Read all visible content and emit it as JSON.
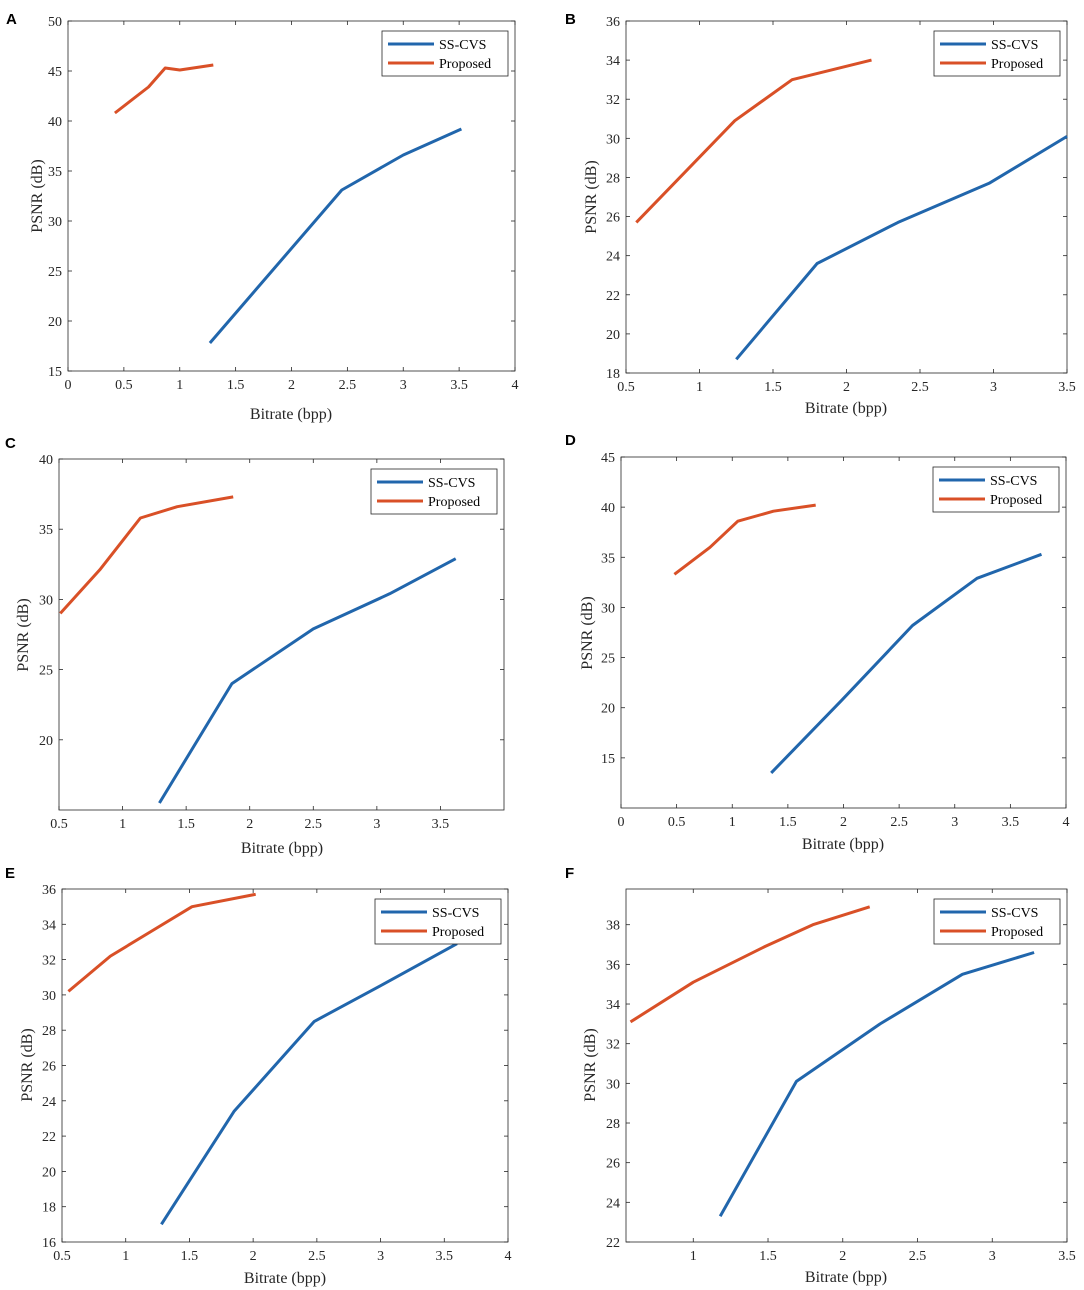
{
  "figure": {
    "x_label": "Bitrate (bpp)",
    "y_label": "PSNR (dB)"
  },
  "colors": {
    "ss_cvs": "#2166ac",
    "proposed": "#d95027"
  },
  "chart_data": [
    {
      "type": "line",
      "panel": "A",
      "xlabel": "Bitrate (bpp)",
      "ylabel": "PSNR (dB)",
      "xlim": [
        0,
        4
      ],
      "ylim": [
        15,
        50
      ],
      "xticks": [
        0,
        0.5,
        1,
        1.5,
        2,
        2.5,
        3,
        3.5,
        4
      ],
      "xtick_labels": [
        "0",
        "0.5",
        "1",
        "1.5",
        "2",
        "2.5",
        "3",
        "3.5",
        "4"
      ],
      "yticks": [
        15,
        20,
        25,
        30,
        35,
        40,
        45,
        50
      ],
      "ytick_labels": [
        "15",
        "20",
        "25",
        "30",
        "35",
        "40",
        "45",
        "50"
      ],
      "legend_position": "top-right",
      "series": [
        {
          "name": "SS-CVS",
          "x": [
            1.27,
            2.45,
            3.0,
            3.52
          ],
          "y": [
            17.8,
            33.1,
            36.6,
            39.2
          ]
        },
        {
          "name": "Proposed",
          "x": [
            0.42,
            0.72,
            0.87,
            1.0,
            1.3
          ],
          "y": [
            40.8,
            43.4,
            45.3,
            45.1,
            45.6
          ]
        }
      ]
    },
    {
      "type": "line",
      "panel": "B",
      "xlabel": "Bitrate (bpp)",
      "ylabel": "PSNR (dB)",
      "xlim": [
        0.5,
        3.5
      ],
      "ylim": [
        18,
        36
      ],
      "xticks": [
        0.5,
        1,
        1.5,
        2,
        2.5,
        3,
        3.5
      ],
      "xtick_labels": [
        "0.5",
        "1",
        "1.5",
        "2",
        "2.5",
        "3",
        "3.5"
      ],
      "yticks": [
        18,
        20,
        22,
        24,
        26,
        28,
        30,
        32,
        34,
        36
      ],
      "ytick_labels": [
        "18",
        "20",
        "22",
        "24",
        "26",
        "28",
        "30",
        "32",
        "34",
        "36"
      ],
      "legend_position": "top-right",
      "series": [
        {
          "name": "SS-CVS",
          "x": [
            1.25,
            1.8,
            2.35,
            2.97,
            3.5
          ],
          "y": [
            18.7,
            23.6,
            25.7,
            27.7,
            30.1
          ]
        },
        {
          "name": "Proposed",
          "x": [
            0.57,
            1.24,
            1.63,
            2.17
          ],
          "y": [
            25.7,
            30.9,
            33.0,
            34.0
          ]
        }
      ]
    },
    {
      "type": "line",
      "panel": "C",
      "xlabel": "Bitrate (bpp)",
      "ylabel": "PSNR (dB)",
      "xlim": [
        0.5,
        4
      ],
      "ylim": [
        15,
        40
      ],
      "xticks": [
        0.5,
        1,
        1.5,
        2,
        2.5,
        3,
        3.5
      ],
      "xtick_labels": [
        "0.5",
        "1",
        "1.5",
        "2",
        "2.5",
        "3",
        "3.5"
      ],
      "yticks": [
        20,
        25,
        30,
        35,
        40
      ],
      "ytick_labels": [
        "20",
        "25",
        "30",
        "35",
        "40"
      ],
      "legend_position": "top-right",
      "series": [
        {
          "name": "SS-CVS",
          "x": [
            1.29,
            1.86,
            2.5,
            3.1,
            3.62
          ],
          "y": [
            15.5,
            24.0,
            27.9,
            30.4,
            32.9
          ]
        },
        {
          "name": "Proposed",
          "x": [
            0.51,
            0.82,
            1.14,
            1.43,
            1.87
          ],
          "y": [
            29.0,
            32.1,
            35.8,
            36.6,
            37.3
          ]
        }
      ]
    },
    {
      "type": "line",
      "panel": "D",
      "xlabel": "Bitrate (bpp)",
      "ylabel": "PSNR (dB)",
      "xlim": [
        0,
        4
      ],
      "ylim": [
        10,
        45
      ],
      "xticks": [
        0,
        0.5,
        1,
        1.5,
        2,
        2.5,
        3,
        3.5,
        4
      ],
      "xtick_labels": [
        "0",
        "0.5",
        "1",
        "1.5",
        "2",
        "2.5",
        "3",
        "3.5",
        "4"
      ],
      "yticks": [
        15,
        20,
        25,
        30,
        35,
        40,
        45
      ],
      "ytick_labels": [
        "15",
        "20",
        "25",
        "30",
        "35",
        "40",
        "45"
      ],
      "legend_position": "top-right",
      "series": [
        {
          "name": "SS-CVS",
          "x": [
            1.35,
            1.98,
            2.62,
            3.2,
            3.78
          ],
          "y": [
            13.5,
            20.7,
            28.2,
            32.9,
            35.3
          ]
        },
        {
          "name": "Proposed",
          "x": [
            0.48,
            0.8,
            1.05,
            1.37,
            1.75
          ],
          "y": [
            33.3,
            36.0,
            38.6,
            39.6,
            40.2
          ]
        }
      ]
    },
    {
      "type": "line",
      "panel": "E",
      "xlabel": "Bitrate (bpp)",
      "ylabel": "PSNR (dB)",
      "xlim": [
        0.5,
        4
      ],
      "ylim": [
        16,
        36
      ],
      "xticks": [
        0.5,
        1,
        1.5,
        2,
        2.5,
        3,
        3.5,
        4
      ],
      "xtick_labels": [
        "0.5",
        "1",
        "1.5",
        "2",
        "2.5",
        "3",
        "3.5",
        "4"
      ],
      "yticks": [
        16,
        18,
        20,
        22,
        24,
        26,
        28,
        30,
        32,
        34,
        36
      ],
      "ytick_labels": [
        "16",
        "18",
        "20",
        "22",
        "24",
        "26",
        "28",
        "30",
        "32",
        "34",
        "36"
      ],
      "legend_position": "top-right",
      "series": [
        {
          "name": "SS-CVS",
          "x": [
            1.28,
            1.85,
            2.48,
            3.02,
            3.6
          ],
          "y": [
            17.0,
            23.4,
            28.5,
            30.6,
            32.9
          ]
        },
        {
          "name": "Proposed",
          "x": [
            0.55,
            0.88,
            1.2,
            1.52,
            2.02
          ],
          "y": [
            30.2,
            32.2,
            33.6,
            35.0,
            35.7
          ]
        }
      ]
    },
    {
      "type": "line",
      "panel": "F",
      "xlabel": "Bitrate (bpp)",
      "ylabel": "PSNR (dB)",
      "xlim": [
        0.55,
        3.5
      ],
      "ylim": [
        22,
        39.8
      ],
      "xticks": [
        1,
        1.5,
        2,
        2.5,
        3,
        3.5
      ],
      "xtick_labels": [
        "1",
        "1.5",
        "2",
        "2.5",
        "3",
        "3.5"
      ],
      "yticks": [
        22,
        24,
        26,
        28,
        30,
        32,
        34,
        36,
        38
      ],
      "ytick_labels": [
        "22",
        "24",
        "26",
        "28",
        "30",
        "32",
        "34",
        "36",
        "38"
      ],
      "legend_position": "top-right",
      "series": [
        {
          "name": "SS-CVS",
          "x": [
            1.18,
            1.69,
            2.25,
            2.8,
            3.28
          ],
          "y": [
            23.3,
            30.1,
            33.0,
            35.5,
            36.6
          ]
        },
        {
          "name": "Proposed",
          "x": [
            0.58,
            1.0,
            1.48,
            1.8,
            2.18
          ],
          "y": [
            33.1,
            35.1,
            36.9,
            38.0,
            38.9
          ]
        }
      ]
    }
  ]
}
